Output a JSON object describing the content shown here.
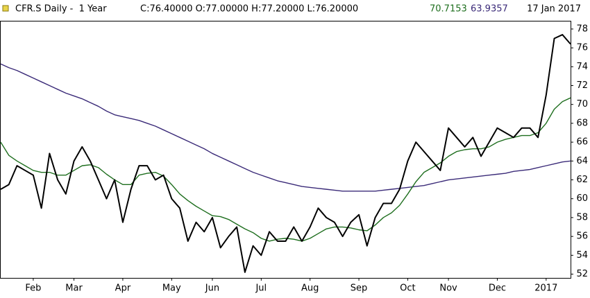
{
  "chart_data": {
    "type": "line",
    "title": "CFR.S Daily -  1 Year",
    "ohlc": "C:76.40000 O:77.00000 H:77.20000 L:76.20000",
    "date": "17 Jan 2017",
    "categories": [
      null,
      null,
      null,
      null,
      "Feb",
      null,
      null,
      null,
      null,
      "Mar",
      null,
      null,
      null,
      null,
      null,
      "Apr",
      null,
      null,
      null,
      null,
      null,
      "May",
      null,
      null,
      null,
      null,
      "Jun",
      null,
      null,
      null,
      null,
      null,
      "Jul",
      null,
      null,
      null,
      null,
      null,
      "Aug",
      null,
      null,
      null,
      null,
      null,
      "Sep",
      null,
      null,
      null,
      null,
      null,
      "Oct",
      null,
      null,
      null,
      null,
      "Nov",
      null,
      null,
      null,
      null,
      null,
      "Dec",
      null,
      null,
      null,
      null,
      null,
      "2017",
      null,
      null,
      null
    ],
    "series": [
      {
        "color": "#000000",
        "values": [
          61,
          61.5,
          63.5,
          63,
          62.5,
          59,
          64.8,
          62,
          60.5,
          64,
          65.5,
          64,
          62,
          60,
          62,
          57.5,
          61,
          63.5,
          63.5,
          62,
          62.5,
          60,
          59,
          55.5,
          57.5,
          56.5,
          58,
          54.8,
          56,
          57,
          52.2,
          55,
          54,
          56.5,
          55.5,
          55.5,
          57,
          55.5,
          57,
          59,
          58,
          57.5,
          56,
          57.5,
          58.3,
          55,
          58,
          59.5,
          59.5,
          61,
          64,
          66,
          65,
          64,
          63,
          67.5,
          66.5,
          65.5,
          66.5,
          64.5,
          66,
          67.5,
          67,
          66.5,
          67.5,
          67.5,
          66.5,
          71,
          77,
          77.4,
          76.4
        ]
      },
      {
        "name": "70.7153",
        "color": "#1e6e1e",
        "values": [
          66,
          64.6,
          64,
          63.5,
          63,
          62.8,
          62.8,
          62.5,
          62.5,
          63,
          63.5,
          63.6,
          63.3,
          62.6,
          62,
          61.5,
          61.5,
          62.5,
          62.7,
          62.8,
          62.4,
          61.5,
          60.5,
          59.8,
          59.2,
          58.7,
          58.2,
          58.1,
          57.8,
          57.3,
          56.8,
          56.4,
          55.8,
          55.5,
          55.7,
          55.8,
          55.7,
          55.5,
          55.8,
          56.3,
          56.8,
          57,
          57,
          56.9,
          56.7,
          56.6,
          57.2,
          58,
          58.5,
          59.3,
          60.5,
          61.8,
          62.8,
          63.3,
          63.8,
          64.5,
          65,
          65.2,
          65.3,
          65.3,
          65.5,
          66,
          66.3,
          66.5,
          66.7,
          66.7,
          67,
          68,
          69.5,
          70.3,
          70.7
        ]
      },
      {
        "name": "63.9357",
        "color": "#3a2a78",
        "values": [
          74.3,
          73.9,
          73.6,
          73.2,
          72.8,
          72.4,
          72,
          71.6,
          71.2,
          70.9,
          70.6,
          70.2,
          69.8,
          69.3,
          68.9,
          68.7,
          68.5,
          68.3,
          68,
          67.7,
          67.3,
          66.9,
          66.5,
          66.1,
          65.7,
          65.3,
          64.8,
          64.4,
          64,
          63.6,
          63.2,
          62.8,
          62.5,
          62.2,
          61.9,
          61.7,
          61.5,
          61.3,
          61.2,
          61.1,
          61,
          60.9,
          60.8,
          60.8,
          60.8,
          60.8,
          60.8,
          60.9,
          61,
          61.1,
          61.2,
          61.3,
          61.4,
          61.6,
          61.8,
          62,
          62.1,
          62.2,
          62.3,
          62.4,
          62.5,
          62.6,
          62.7,
          62.9,
          63,
          63.1,
          63.3,
          63.5,
          63.7,
          63.9,
          64
        ]
      }
    ],
    "ylim": [
      51.6,
      78.8
    ],
    "yticks": [
      52,
      54,
      56,
      58,
      60,
      62,
      64,
      66,
      68,
      70,
      72,
      74,
      76,
      78
    ],
    "grid": false
  }
}
